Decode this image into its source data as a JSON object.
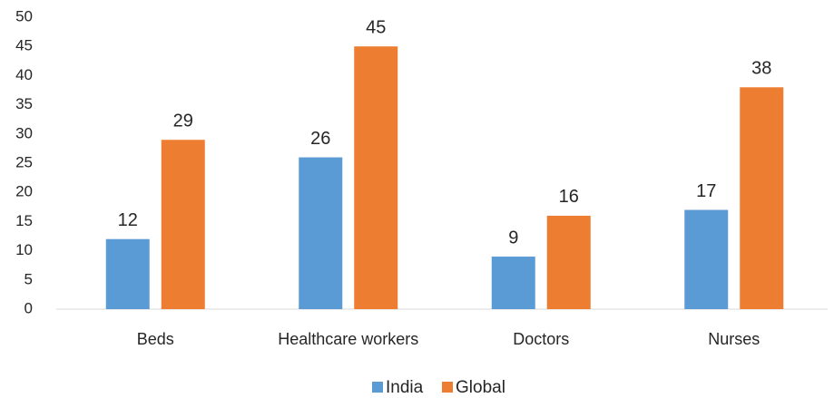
{
  "chart_data": {
    "type": "bar",
    "categories": [
      "Beds",
      "Healthcare workers",
      "Doctors",
      "Nurses"
    ],
    "series": [
      {
        "name": "India",
        "color": "#5b9bd5",
        "values": [
          12,
          26,
          9,
          17
        ]
      },
      {
        "name": "Global",
        "color": "#ed7d31",
        "values": [
          29,
          45,
          16,
          38
        ]
      }
    ],
    "ylim": [
      0,
      50
    ],
    "yticks": [
      0,
      5,
      10,
      15,
      20,
      25,
      30,
      35,
      40,
      45,
      50
    ],
    "grid": false,
    "legend": "bottom"
  }
}
